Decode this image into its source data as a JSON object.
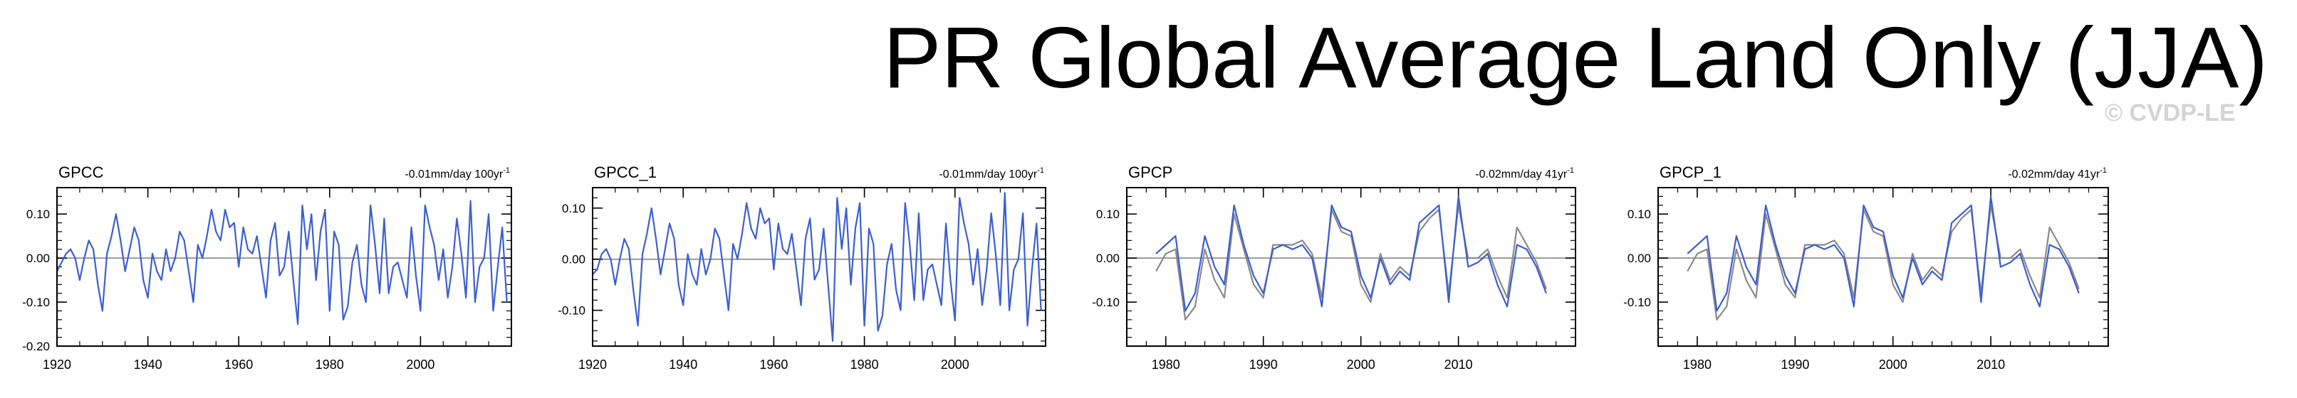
{
  "title": "PR Global Average Land Only (JJA)",
  "watermark": "© CVDP-LE",
  "colors": {
    "series": "#3b5fd0",
    "gray": "#8a8a8a",
    "zero_line": "#9a9a9a",
    "axis": "#000000"
  },
  "chart_data": [
    {
      "type": "line",
      "title": "GPCC",
      "trend_value": "-0.01mm/day 100yr",
      "trend_exp": "-1",
      "xlim": [
        1920,
        2020
      ],
      "ylim": [
        -0.2,
        0.16
      ],
      "xticks": [
        1920,
        1940,
        1960,
        1980,
        2000
      ],
      "yticks": [
        0.1,
        0.0,
        -0.1,
        -0.2
      ],
      "ytick_labels": [
        "0.10",
        "0.00",
        "-0.10",
        "-0.20"
      ],
      "series": [
        {
          "color": "#3b5fd0",
          "x": [
            1920,
            1921,
            1922,
            1923,
            1924,
            1925,
            1926,
            1927,
            1928,
            1929,
            1930,
            1931,
            1932,
            1933,
            1934,
            1935,
            1936,
            1937,
            1938,
            1939,
            1940,
            1941,
            1942,
            1943,
            1944,
            1945,
            1946,
            1947,
            1948,
            1949,
            1950,
            1951,
            1952,
            1953,
            1954,
            1955,
            1956,
            1957,
            1958,
            1959,
            1960,
            1961,
            1962,
            1963,
            1964,
            1965,
            1966,
            1967,
            1968,
            1969,
            1970,
            1971,
            1972,
            1973,
            1974,
            1975,
            1976,
            1977,
            1978,
            1979,
            1980,
            1981,
            1982,
            1983,
            1984,
            1985,
            1986,
            1987,
            1988,
            1989,
            1990,
            1991,
            1992,
            1993,
            1994,
            1995,
            1996,
            1997,
            1998,
            1999,
            2000,
            2001,
            2002,
            2003,
            2004,
            2005,
            2006,
            2007,
            2008,
            2009,
            2010,
            2011,
            2012,
            2013,
            2014,
            2015,
            2016,
            2017,
            2018,
            2019
          ],
          "y": [
            -0.03,
            -0.01,
            0.01,
            0.02,
            0.0,
            -0.05,
            0.0,
            0.04,
            0.02,
            -0.06,
            -0.12,
            0.01,
            0.05,
            0.1,
            0.04,
            -0.03,
            0.02,
            0.07,
            0.04,
            -0.05,
            -0.09,
            0.01,
            -0.03,
            -0.05,
            0.02,
            -0.03,
            0.0,
            0.06,
            0.04,
            -0.03,
            -0.1,
            0.03,
            0.0,
            0.05,
            0.11,
            0.06,
            0.04,
            0.11,
            0.07,
            0.08,
            -0.02,
            0.07,
            0.02,
            0.01,
            0.05,
            -0.02,
            -0.09,
            0.04,
            0.08,
            -0.04,
            -0.02,
            0.06,
            -0.05,
            -0.15,
            0.12,
            0.02,
            0.1,
            -0.05,
            0.06,
            0.11,
            -0.12,
            0.06,
            0.03,
            -0.14,
            -0.11,
            -0.01,
            0.03,
            -0.06,
            -0.1,
            0.12,
            0.03,
            -0.08,
            0.09,
            -0.08,
            -0.02,
            -0.01,
            -0.05,
            -0.09,
            0.07,
            -0.04,
            -0.12,
            0.12,
            0.07,
            0.03,
            -0.05,
            0.02,
            -0.09,
            -0.02,
            0.09,
            0.01,
            -0.09,
            0.13,
            -0.1,
            -0.02,
            0.0,
            0.1,
            -0.12,
            -0.02,
            0.07,
            -0.1
          ]
        }
      ]
    },
    {
      "type": "line",
      "title": "GPCC_1",
      "trend_value": "-0.01mm/day 100yr",
      "trend_exp": "-1",
      "xlim": [
        1920,
        2020
      ],
      "ylim": [
        -0.17,
        0.14
      ],
      "xticks": [
        1920,
        1940,
        1960,
        1980,
        2000
      ],
      "yticks": [
        0.1,
        0.0,
        -0.1
      ],
      "ytick_labels": [
        "0.10",
        "0.00",
        "-0.10"
      ],
      "series": [
        {
          "color": "#3b5fd0",
          "x": [
            1920,
            1921,
            1922,
            1923,
            1924,
            1925,
            1926,
            1927,
            1928,
            1929,
            1930,
            1931,
            1932,
            1933,
            1934,
            1935,
            1936,
            1937,
            1938,
            1939,
            1940,
            1941,
            1942,
            1943,
            1944,
            1945,
            1946,
            1947,
            1948,
            1949,
            1950,
            1951,
            1952,
            1953,
            1954,
            1955,
            1956,
            1957,
            1958,
            1959,
            1960,
            1961,
            1962,
            1963,
            1964,
            1965,
            1966,
            1967,
            1968,
            1969,
            1970,
            1971,
            1972,
            1973,
            1974,
            1975,
            1976,
            1977,
            1978,
            1979,
            1980,
            1981,
            1982,
            1983,
            1984,
            1985,
            1986,
            1987,
            1988,
            1989,
            1990,
            1991,
            1992,
            1993,
            1994,
            1995,
            1996,
            1997,
            1998,
            1999,
            2000,
            2001,
            2002,
            2003,
            2004,
            2005,
            2006,
            2007,
            2008,
            2009,
            2010,
            2011,
            2012,
            2013,
            2014,
            2015,
            2016,
            2017,
            2018,
            2019
          ],
          "y": [
            -0.03,
            -0.02,
            0.01,
            0.02,
            0.0,
            -0.05,
            0.0,
            0.04,
            0.02,
            -0.06,
            -0.13,
            0.01,
            0.05,
            0.1,
            0.04,
            -0.03,
            0.02,
            0.07,
            0.04,
            -0.05,
            -0.09,
            0.01,
            -0.03,
            -0.05,
            0.02,
            -0.03,
            0.0,
            0.06,
            0.04,
            -0.03,
            -0.1,
            0.03,
            0.0,
            0.05,
            0.11,
            0.06,
            0.04,
            0.1,
            0.07,
            0.08,
            -0.02,
            0.07,
            0.02,
            0.01,
            0.05,
            -0.02,
            -0.09,
            0.04,
            0.08,
            -0.04,
            -0.02,
            0.06,
            -0.05,
            -0.16,
            0.12,
            0.02,
            0.1,
            -0.05,
            0.06,
            0.11,
            -0.13,
            0.06,
            0.03,
            -0.14,
            -0.11,
            -0.01,
            0.03,
            -0.06,
            -0.1,
            0.11,
            0.03,
            -0.08,
            0.09,
            -0.08,
            -0.02,
            -0.01,
            -0.05,
            -0.09,
            0.07,
            -0.04,
            -0.12,
            0.12,
            0.07,
            0.03,
            -0.05,
            0.02,
            -0.09,
            -0.02,
            0.09,
            0.01,
            -0.09,
            0.13,
            -0.1,
            -0.02,
            0.0,
            0.09,
            -0.13,
            -0.02,
            0.07,
            -0.1
          ]
        }
      ]
    },
    {
      "type": "line",
      "title": "GPCP",
      "trend_value": "-0.02mm/day 41yr",
      "trend_exp": "-1",
      "xlim": [
        1976,
        2022
      ],
      "ylim": [
        -0.2,
        0.16
      ],
      "xticks": [
        1980,
        1990,
        2000,
        2010
      ],
      "yticks": [
        0.1,
        0.0,
        -0.1
      ],
      "ytick_labels": [
        "0.10",
        "0.00",
        "-0.10"
      ],
      "series": [
        {
          "color": "#3b5fd0",
          "x": [
            1979,
            1980,
            1981,
            1982,
            1983,
            1984,
            1985,
            1986,
            1987,
            1988,
            1989,
            1990,
            1991,
            1992,
            1993,
            1994,
            1995,
            1996,
            1997,
            1998,
            1999,
            2000,
            2001,
            2002,
            2003,
            2004,
            2005,
            2006,
            2007,
            2008,
            2009,
            2010,
            2011,
            2012,
            2013,
            2014,
            2015,
            2016,
            2017,
            2018,
            2019
          ],
          "y": [
            0.01,
            0.03,
            0.05,
            -0.12,
            -0.08,
            0.05,
            -0.02,
            -0.06,
            0.12,
            0.03,
            -0.04,
            -0.08,
            0.02,
            0.03,
            0.02,
            0.03,
            0.0,
            -0.11,
            0.12,
            0.07,
            0.06,
            -0.04,
            -0.09,
            0.0,
            -0.06,
            -0.03,
            -0.05,
            0.08,
            0.1,
            0.12,
            -0.1,
            0.14,
            -0.02,
            -0.01,
            0.01,
            -0.06,
            -0.11,
            0.03,
            0.02,
            -0.02,
            -0.08
          ]
        },
        {
          "color": "#8a8a8a",
          "x": [
            1979,
            1980,
            1981,
            1982,
            1983,
            1984,
            1985,
            1986,
            1987,
            1988,
            1989,
            1990,
            1991,
            1992,
            1993,
            1994,
            1995,
            1996,
            1997,
            1998,
            1999,
            2000,
            2001,
            2002,
            2003,
            2004,
            2005,
            2006,
            2007,
            2008,
            2009,
            2010,
            2011,
            2012,
            2013,
            2014,
            2015,
            2016,
            2017,
            2018,
            2019
          ],
          "y": [
            -0.03,
            0.01,
            0.02,
            -0.14,
            -0.11,
            0.02,
            -0.05,
            -0.09,
            0.1,
            0.02,
            -0.06,
            -0.09,
            0.03,
            0.03,
            0.03,
            0.04,
            0.01,
            -0.09,
            0.11,
            0.06,
            0.05,
            -0.06,
            -0.1,
            0.01,
            -0.05,
            -0.02,
            -0.04,
            0.06,
            0.09,
            0.11,
            -0.08,
            0.12,
            0.0,
            0.0,
            0.02,
            -0.04,
            -0.09,
            0.07,
            0.03,
            -0.01,
            -0.07
          ]
        }
      ]
    },
    {
      "type": "line",
      "title": "GPCP_1",
      "trend_value": "-0.02mm/day 41yr",
      "trend_exp": "-1",
      "xlim": [
        1976,
        2022
      ],
      "ylim": [
        -0.2,
        0.16
      ],
      "xticks": [
        1980,
        1990,
        2000,
        2010
      ],
      "yticks": [
        0.1,
        0.0,
        -0.1
      ],
      "ytick_labels": [
        "0.10",
        "0.00",
        "-0.10"
      ],
      "series": [
        {
          "color": "#3b5fd0",
          "x": [
            1979,
            1980,
            1981,
            1982,
            1983,
            1984,
            1985,
            1986,
            1987,
            1988,
            1989,
            1990,
            1991,
            1992,
            1993,
            1994,
            1995,
            1996,
            1997,
            1998,
            1999,
            2000,
            2001,
            2002,
            2003,
            2004,
            2005,
            2006,
            2007,
            2008,
            2009,
            2010,
            2011,
            2012,
            2013,
            2014,
            2015,
            2016,
            2017,
            2018,
            2019
          ],
          "y": [
            0.01,
            0.03,
            0.05,
            -0.12,
            -0.08,
            0.05,
            -0.02,
            -0.06,
            0.12,
            0.03,
            -0.04,
            -0.08,
            0.02,
            0.03,
            0.02,
            0.03,
            0.0,
            -0.11,
            0.12,
            0.07,
            0.06,
            -0.04,
            -0.09,
            0.0,
            -0.06,
            -0.03,
            -0.05,
            0.08,
            0.1,
            0.12,
            -0.1,
            0.14,
            -0.02,
            -0.01,
            0.01,
            -0.06,
            -0.11,
            0.03,
            0.02,
            -0.02,
            -0.08
          ]
        },
        {
          "color": "#8a8a8a",
          "x": [
            1979,
            1980,
            1981,
            1982,
            1983,
            1984,
            1985,
            1986,
            1987,
            1988,
            1989,
            1990,
            1991,
            1992,
            1993,
            1994,
            1995,
            1996,
            1997,
            1998,
            1999,
            2000,
            2001,
            2002,
            2003,
            2004,
            2005,
            2006,
            2007,
            2008,
            2009,
            2010,
            2011,
            2012,
            2013,
            2014,
            2015,
            2016,
            2017,
            2018,
            2019
          ],
          "y": [
            -0.03,
            0.01,
            0.02,
            -0.14,
            -0.11,
            0.02,
            -0.05,
            -0.09,
            0.1,
            0.02,
            -0.06,
            -0.09,
            0.03,
            0.03,
            0.03,
            0.04,
            0.01,
            -0.09,
            0.11,
            0.06,
            0.05,
            -0.06,
            -0.1,
            0.01,
            -0.05,
            -0.02,
            -0.04,
            0.06,
            0.09,
            0.11,
            -0.08,
            0.12,
            0.0,
            0.0,
            0.02,
            -0.04,
            -0.09,
            0.07,
            0.03,
            -0.01,
            -0.07
          ]
        }
      ]
    }
  ]
}
